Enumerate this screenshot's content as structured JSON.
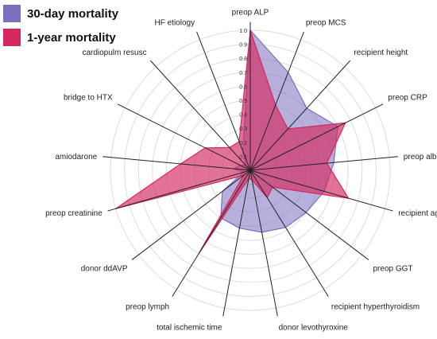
{
  "chart_data": {
    "type": "radar",
    "axes": [
      "preop ALP",
      "preop MCS",
      "recipient height",
      "preop CRP",
      "preop albumin",
      "recipient age",
      "preop GGT",
      "recipient hyperthyroidism",
      "donor levothyroxine",
      "total ischemic time",
      "preop lymph",
      "donor ddAVP",
      "preop creatinine",
      "amiodarone",
      "bridge to HTX",
      "cardiopulm resusc",
      "HF etiology"
    ],
    "radial_ticks": [
      "0",
      "0.1",
      "0.2",
      "0.3",
      "0.4",
      "0.5",
      "0.6",
      "0.7",
      "0.8",
      "0.9",
      "1.0"
    ],
    "rmax": 1.0,
    "grid": true,
    "legend_position": "top-left",
    "series": [
      {
        "name": "30-day mortality",
        "color": "#7b6fc0",
        "values": [
          1.0,
          0.75,
          0.6,
          0.7,
          0.6,
          0.55,
          0.5,
          0.48,
          0.45,
          0.42,
          0.4,
          0.25,
          0.05,
          0.12,
          0.08,
          0.05,
          0.15
        ]
      },
      {
        "name": "1-year mortality",
        "color": "#d4285e",
        "values": [
          1.0,
          0.5,
          0.4,
          0.76,
          0.55,
          0.73,
          0.2,
          0.23,
          0.07,
          0.06,
          0.7,
          0.06,
          1.0,
          0.5,
          0.36,
          0.22,
          0.22
        ]
      }
    ]
  }
}
